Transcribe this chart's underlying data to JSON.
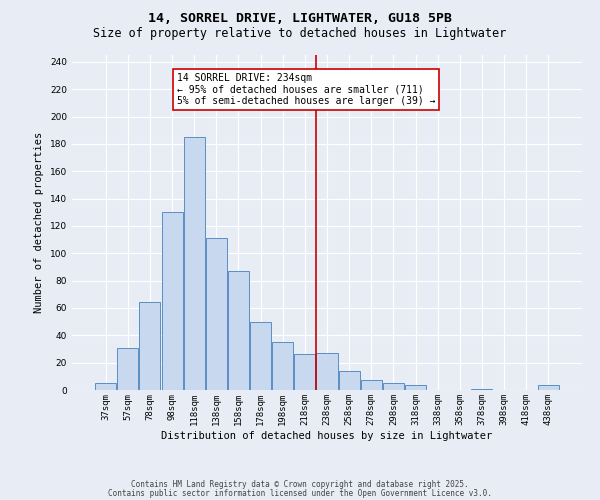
{
  "title1": "14, SORREL DRIVE, LIGHTWATER, GU18 5PB",
  "title2": "Size of property relative to detached houses in Lightwater",
  "xlabel": "Distribution of detached houses by size in Lightwater",
  "ylabel": "Number of detached properties",
  "bar_labels": [
    "37sqm",
    "57sqm",
    "78sqm",
    "98sqm",
    "118sqm",
    "138sqm",
    "158sqm",
    "178sqm",
    "198sqm",
    "218sqm",
    "238sqm",
    "258sqm",
    "278sqm",
    "298sqm",
    "318sqm",
    "338sqm",
    "358sqm",
    "378sqm",
    "398sqm",
    "418sqm",
    "438sqm"
  ],
  "bar_values": [
    5,
    31,
    64,
    130,
    185,
    111,
    87,
    50,
    35,
    26,
    27,
    14,
    7,
    5,
    4,
    0,
    0,
    1,
    0,
    0,
    4
  ],
  "bar_color": "#c8d8ee",
  "bar_edge_color": "#5a8fc4",
  "bg_color": "#e8ecf5",
  "grid_color": "#ffffff",
  "vline_color": "#cc0000",
  "annotation_text": "14 SORREL DRIVE: 234sqm\n← 95% of detached houses are smaller (711)\n5% of semi-detached houses are larger (39) →",
  "annotation_box_color": "#cc0000",
  "footer1": "Contains HM Land Registry data © Crown copyright and database right 2025.",
  "footer2": "Contains public sector information licensed under the Open Government Licence v3.0.",
  "ylim": [
    0,
    245
  ],
  "title_fontsize": 9.5,
  "subtitle_fontsize": 8.5,
  "tick_fontsize": 6.5,
  "axis_label_fontsize": 7.5,
  "footer_fontsize": 5.5,
  "ann_fontsize": 7.0
}
